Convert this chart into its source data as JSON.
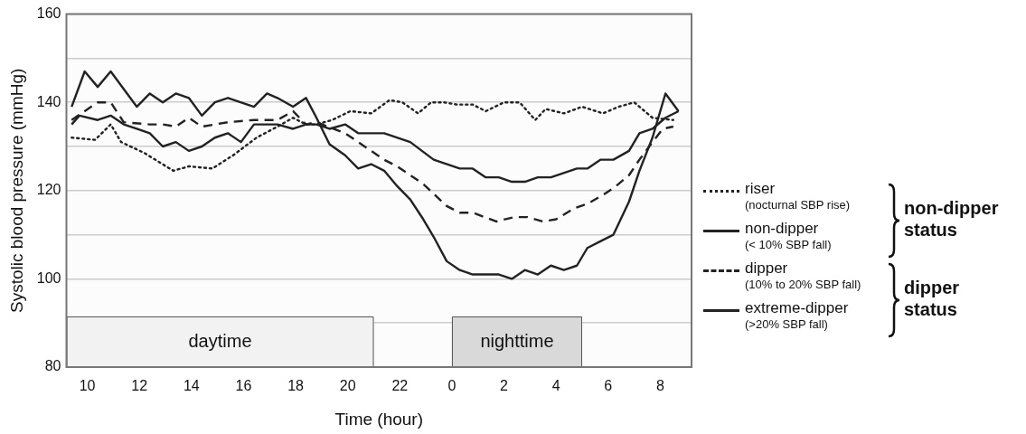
{
  "chart_data": {
    "type": "line",
    "xlabel": "Time (hour)",
    "ylabel": "Systolic blood pressure (mmHg)",
    "xlim": [
      "--01-01T09:12",
      "--01-02T09:12"
    ],
    "ylim": [
      80,
      160
    ],
    "xticks": [
      {
        "value": "--01-01T10:00",
        "label": "10"
      },
      {
        "value": "--01-01T12:00",
        "label": "12"
      },
      {
        "value": "--01-01T14:00",
        "label": "14"
      },
      {
        "value": "--01-01T16:00",
        "label": "16"
      },
      {
        "value": "--01-01T18:00",
        "label": "18"
      },
      {
        "value": "--01-01T20:00",
        "label": "20"
      },
      {
        "value": "--01-01T22:00",
        "label": "22"
      },
      {
        "value": "--01-02T00:00",
        "label": "0"
      },
      {
        "value": "--01-02T02:00",
        "label": "2"
      },
      {
        "value": "--01-02T04:00",
        "label": "4"
      },
      {
        "value": "--01-02T06:00",
        "label": "6"
      },
      {
        "value": "--01-02T08:00",
        "label": "8"
      }
    ],
    "yticks": [
      80,
      {
        "value": 90,
        "label": null
      },
      100,
      {
        "value": 110,
        "label": null
      },
      120,
      {
        "value": 130,
        "label": null
      },
      140,
      {
        "value": 150,
        "label": null
      },
      160
    ],
    "grid": "y",
    "legend": "right",
    "marker": "none",
    "series": [
      {
        "name": "riser (nocturnal SBP rise)",
        "color": "#222222",
        "line_style": "dotted",
        "x": [
          "--01-01T09:24",
          "--01-01T10:18",
          "--01-01T10:54",
          "--01-01T11:18",
          "--01-01T12:12",
          "--01-01T13:18",
          "--01-01T13:54",
          "--01-01T14:48",
          "--01-01T15:36",
          "--01-01T16:30",
          "--01-01T17:18",
          "--01-01T17:54",
          "--01-01T18:24",
          "--01-01T18:48",
          "--01-01T19:24",
          "--01-01T20:06",
          "--01-01T20:54",
          "--01-01T21:36",
          "--01-01T22:06",
          "--01-01T22:42",
          "--01-01T23:12",
          "--01-01T23:42",
          "--01-02T00:12",
          "--01-02T00:48",
          "--01-02T01:18",
          "--01-02T02:00",
          "--01-02T02:36",
          "--01-02T03:12",
          "--01-02T03:36",
          "--01-02T04:18",
          "--01-02T05:00",
          "--01-02T05:48",
          "--01-02T06:24",
          "--01-02T07:00",
          "--01-02T07:42",
          "--01-02T08:30"
        ],
        "values": [
          132,
          131.5,
          135,
          131,
          128.5,
          124.5,
          125.5,
          125,
          128,
          132,
          134.5,
          136.5,
          135,
          135,
          136,
          138,
          137.5,
          140.5,
          140,
          137.5,
          140,
          140,
          139.5,
          139.5,
          138,
          140,
          140,
          136,
          138.5,
          137.5,
          139,
          137.5,
          139,
          140,
          136.5,
          136
        ]
      },
      {
        "name": "non-dipper (< 10% SBP fall)",
        "color": "#222222",
        "line_style": "solid",
        "x": [
          "--01-01T09:24",
          "--01-01T09:42",
          "--01-01T10:24",
          "--01-01T10:54",
          "--01-01T11:24",
          "--01-01T11:54",
          "--01-01T12:24",
          "--01-01T12:54",
          "--01-01T13:24",
          "--01-01T13:54",
          "--01-01T14:24",
          "--01-01T14:54",
          "--01-01T15:24",
          "--01-01T15:54",
          "--01-01T16:24",
          "--01-01T17:18",
          "--01-01T17:54",
          "--01-01T18:24",
          "--01-01T18:48",
          "--01-01T19:18",
          "--01-01T19:54",
          "--01-01T20:24",
          "--01-01T21:24",
          "--01-01T22:24",
          "--01-01T23:18",
          "--01-02T00:18",
          "--01-02T00:48",
          "--01-02T01:18",
          "--01-02T01:48",
          "--01-02T02:18",
          "--01-02T02:48",
          "--01-02T03:18",
          "--01-02T03:48",
          "--01-02T04:48",
          "--01-02T05:12",
          "--01-02T05:42",
          "--01-02T06:12",
          "--01-02T06:48",
          "--01-02T07:12",
          "--01-02T07:42",
          "--01-02T08:12",
          "--01-02T08:42"
        ],
        "values": [
          135,
          137,
          136,
          137,
          135,
          134,
          133,
          130,
          131,
          129,
          130,
          132,
          133,
          131,
          135,
          135,
          134,
          135,
          135,
          134,
          135,
          133,
          133,
          131,
          127,
          125,
          125,
          123,
          123,
          122,
          122,
          123,
          123,
          125,
          125,
          127,
          127,
          129,
          133,
          134,
          136.5,
          138
        ]
      },
      {
        "name": "dipper (10% to 20% SBP fall)",
        "color": "#222222",
        "line_style": "dashed",
        "x": [
          "--01-01T09:24",
          "--01-01T09:54",
          "--01-01T10:24",
          "--01-01T10:54",
          "--01-01T11:24",
          "--01-01T12:24",
          "--01-01T12:54",
          "--01-01T13:24",
          "--01-01T13:54",
          "--01-01T14:24",
          "--01-01T15:24",
          "--01-01T16:24",
          "--01-01T17:18",
          "--01-01T17:54",
          "--01-01T18:24",
          "--01-01T18:48",
          "--01-01T19:54",
          "--01-01T20:54",
          "--01-01T21:24",
          "--01-01T21:54",
          "--01-01T22:54",
          "--01-01T23:48",
          "--01-02T00:18",
          "--01-02T00:48",
          "--01-02T01:42",
          "--01-02T02:24",
          "--01-02T02:54",
          "--01-02T03:30",
          "--01-02T04:00",
          "--01-02T04:42",
          "--01-02T05:12",
          "--01-02T05:48",
          "--01-02T06:18",
          "--01-02T06:48",
          "--01-02T07:12",
          "--01-02T07:42",
          "--01-02T08:06",
          "--01-02T08:30"
        ],
        "values": [
          136,
          138,
          140,
          140,
          135.5,
          135,
          135,
          134.5,
          136.5,
          134.5,
          135.5,
          136,
          136,
          138,
          135,
          135.5,
          133,
          129,
          127,
          125.5,
          121.5,
          116.5,
          115,
          115,
          113,
          114,
          114,
          113,
          113.5,
          116,
          117,
          119,
          121,
          123.5,
          127,
          131,
          134,
          134.5
        ]
      },
      {
        "name": "extreme-dipper (>20% SBP fall)",
        "color": "#222222",
        "line_style": "solid",
        "x": [
          "--01-01T09:24",
          "--01-01T09:54",
          "--01-01T10:24",
          "--01-01T10:54",
          "--01-01T11:54",
          "--01-01T12:24",
          "--01-01T12:54",
          "--01-01T13:24",
          "--01-01T13:54",
          "--01-01T14:24",
          "--01-01T14:54",
          "--01-01T15:24",
          "--01-01T16:24",
          "--01-01T16:54",
          "--01-01T17:18",
          "--01-01T17:54",
          "--01-01T18:24",
          "--01-01T18:48",
          "--01-01T19:18",
          "--01-01T19:54",
          "--01-01T20:24",
          "--01-01T20:54",
          "--01-01T21:24",
          "--01-01T21:54",
          "--01-01T22:24",
          "--01-01T22:54",
          "--01-01T23:18",
          "--01-01T23:48",
          "--01-02T00:18",
          "--01-02T00:48",
          "--01-02T01:48",
          "--01-02T02:18",
          "--01-02T02:48",
          "--01-02T03:18",
          "--01-02T03:48",
          "--01-02T04:18",
          "--01-02T04:48",
          "--01-02T05:12",
          "--01-02T05:42",
          "--01-02T06:12",
          "--01-02T06:48",
          "--01-02T07:12",
          "--01-02T07:42",
          "--01-02T08:12",
          "--01-02T08:42"
        ],
        "values": [
          139,
          147,
          143.5,
          147,
          139,
          142,
          140,
          142,
          141,
          137,
          140,
          141,
          139,
          142,
          141,
          139,
          141,
          136.5,
          130.5,
          128,
          125,
          126,
          124.5,
          121,
          118,
          113.5,
          109.5,
          104,
          102,
          101,
          101,
          100,
          102,
          101,
          103,
          102,
          103,
          107,
          108.5,
          110,
          117.5,
          124.5,
          132,
          142,
          138
        ]
      }
    ],
    "bands": [
      {
        "axis": "x",
        "from": "--01-01T09:12",
        "to": "--01-01T21:00",
        "label": "daytime",
        "color": "#f2f2f2"
      },
      {
        "axis": "x",
        "from": "--01-02T00:00",
        "to": "--01-02T05:00",
        "label": "nighttime",
        "color": "#d9d9d9"
      }
    ],
    "annotations": [
      "non-dipper status",
      "dipper status"
    ]
  }
}
